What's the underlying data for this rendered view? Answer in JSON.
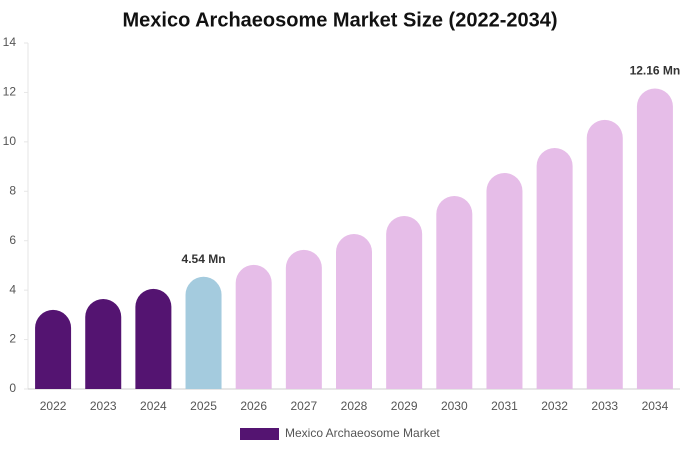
{
  "chart_data": {
    "type": "bar",
    "title": "Mexico Archaeosome Market Size (2022-2034)",
    "categories": [
      "2022",
      "2023",
      "2024",
      "2025",
      "2026",
      "2027",
      "2028",
      "2029",
      "2030",
      "2031",
      "2032",
      "2033",
      "2034"
    ],
    "series": [
      {
        "name": "Mexico Archaeosome Market",
        "color": "#541471",
        "colors": [
          "#541471",
          "#541471",
          "#541471",
          "#a4cbde",
          "#e6bde8",
          "#e6bde8",
          "#e6bde8",
          "#e6bde8",
          "#e6bde8",
          "#e6bde8",
          "#e6bde8",
          "#e6bde8",
          "#e6bde8"
        ],
        "values": [
          3.2,
          3.64,
          4.05,
          4.54,
          5.02,
          5.63,
          6.27,
          7.0,
          7.81,
          8.74,
          9.75,
          10.89,
          12.16
        ],
        "value_labels": [
          null,
          null,
          null,
          "4.54 Mn",
          null,
          null,
          null,
          null,
          null,
          null,
          null,
          null,
          "12.16 Mn"
        ]
      }
    ],
    "ylim": [
      0,
      14
    ],
    "yticks": [
      0,
      2,
      4,
      6,
      8,
      10,
      12,
      14
    ],
    "legend": "bottom"
  }
}
